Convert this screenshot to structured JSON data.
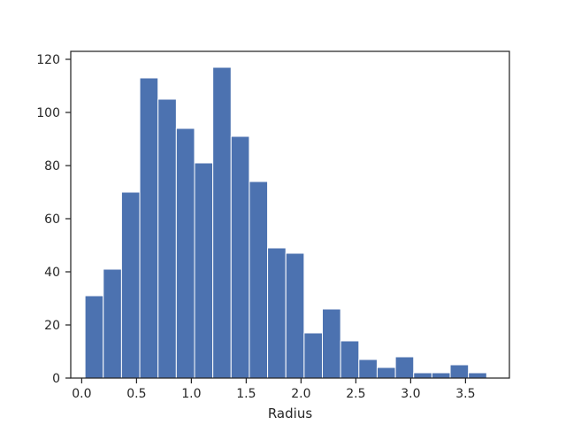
{
  "chart_data": {
    "type": "bar",
    "title": "",
    "xlabel": "Radius",
    "ylabel": "",
    "xlim": [
      -0.1,
      3.9
    ],
    "ylim": [
      0,
      123
    ],
    "bin_start": 0.03,
    "bin_width": 0.1665,
    "values": [
      31,
      41,
      70,
      113,
      105,
      94,
      81,
      117,
      91,
      74,
      49,
      47,
      17,
      26,
      14,
      7,
      4,
      8,
      2,
      2,
      5,
      2
    ],
    "x_ticks": [
      0.0,
      0.5,
      1.0,
      1.5,
      2.0,
      2.5,
      3.0,
      3.5
    ],
    "x_tick_labels": [
      "0.0",
      "0.5",
      "1.0",
      "1.5",
      "2.0",
      "2.5",
      "3.0",
      "3.5"
    ],
    "y_ticks": [
      0,
      20,
      40,
      60,
      80,
      100,
      120
    ],
    "y_tick_labels": [
      "0",
      "20",
      "40",
      "60",
      "80",
      "100",
      "120"
    ],
    "grid": false,
    "bar_color": "#4c72b0",
    "edge_color": "#ffffff"
  }
}
